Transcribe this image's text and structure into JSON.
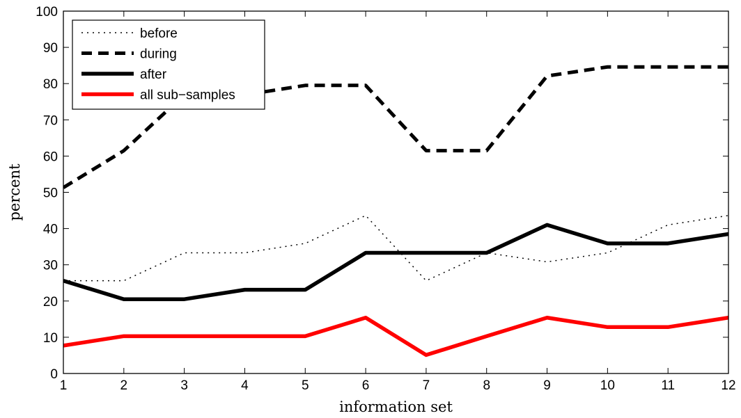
{
  "chart_data": {
    "type": "line",
    "title": "",
    "xlabel": "information set",
    "ylabel": "percent",
    "x": [
      1,
      2,
      3,
      4,
      5,
      6,
      7,
      8,
      9,
      10,
      11,
      12
    ],
    "xlim": [
      1,
      12
    ],
    "ylim": [
      0,
      100
    ],
    "xticks": [
      "1",
      "2",
      "3",
      "4",
      "5",
      "6",
      "7",
      "8",
      "9",
      "10",
      "11",
      "12"
    ],
    "yticks": [
      "0",
      "10",
      "20",
      "30",
      "40",
      "50",
      "60",
      "70",
      "80",
      "90",
      "100"
    ],
    "grid": false,
    "legend_position": "top-left",
    "series": [
      {
        "name": "before",
        "style": "dotted",
        "color": "#000000",
        "values": [
          25.6,
          25.6,
          33.3,
          33.3,
          35.9,
          43.6,
          25.6,
          33.3,
          30.8,
          33.3,
          41.0,
          43.6
        ]
      },
      {
        "name": "during",
        "style": "dashed",
        "color": "#000000",
        "values": [
          51.3,
          61.5,
          76.9,
          76.9,
          79.5,
          79.5,
          61.5,
          61.5,
          82.1,
          84.6,
          84.6,
          84.6
        ]
      },
      {
        "name": "after",
        "style": "solid",
        "color": "#000000",
        "values": [
          25.6,
          20.5,
          20.5,
          23.1,
          23.1,
          33.3,
          33.3,
          33.3,
          41.0,
          35.9,
          35.9,
          38.5
        ]
      },
      {
        "name": "all sub−samples",
        "style": "solid",
        "color": "#ff0000",
        "values": [
          7.7,
          10.3,
          10.3,
          10.3,
          10.3,
          15.4,
          5.1,
          10.3,
          15.4,
          12.8,
          12.8,
          15.4
        ]
      }
    ]
  }
}
